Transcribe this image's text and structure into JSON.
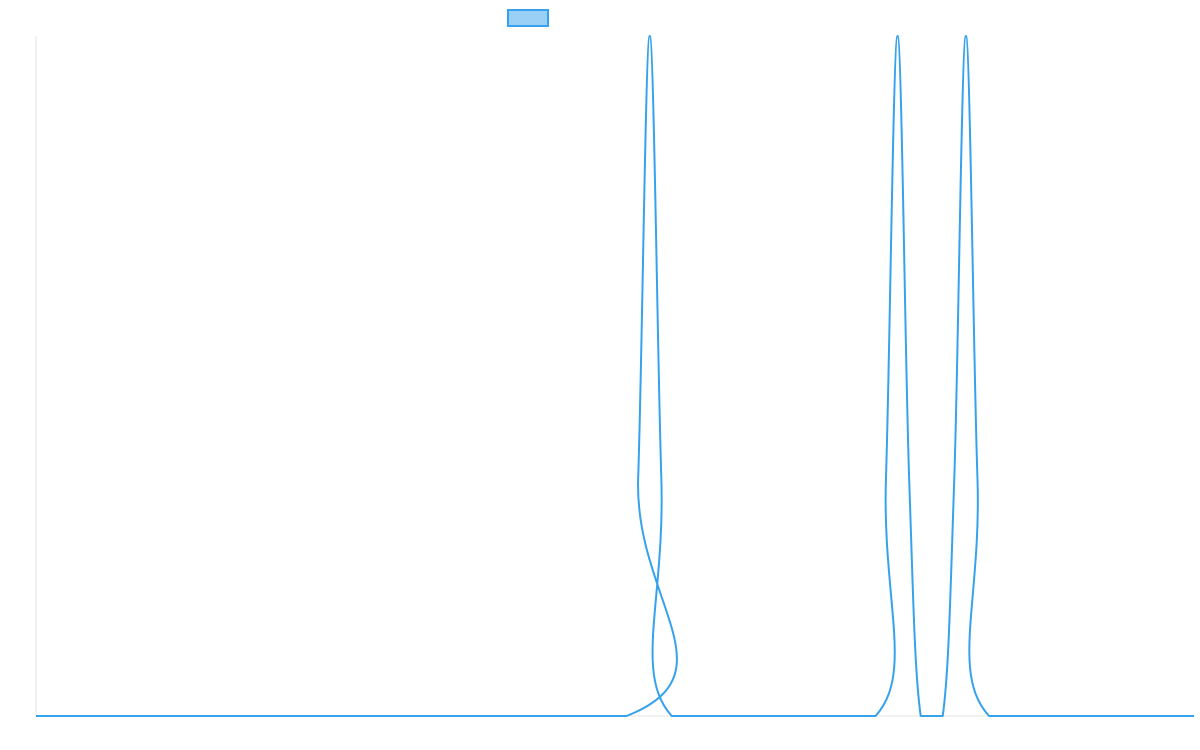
{
  "chart_data": {
    "type": "line",
    "title": "",
    "xlabel": "",
    "ylabel": "",
    "legend": {
      "placement": "top-center",
      "entries": [
        {
          "name": "",
          "color": "#36a2eb",
          "fill": "#9ad0f5"
        }
      ]
    },
    "grid": false,
    "xlim": [
      0,
      1
    ],
    "ylim": [
      0,
      1
    ],
    "series": [
      {
        "name": "",
        "color": "#36a2eb",
        "points": [
          [
            0.0,
            0.0
          ],
          [
            0.51,
            0.0
          ],
          [
            0.52,
            0.35
          ],
          [
            0.53,
            1.0
          ],
          [
            0.54,
            0.35
          ],
          [
            0.549,
            0.0
          ],
          [
            0.725,
            0.0
          ],
          [
            0.734,
            0.35
          ],
          [
            0.744,
            1.0
          ],
          [
            0.754,
            0.35
          ],
          [
            0.764,
            0.0
          ],
          [
            0.783,
            0.0
          ],
          [
            0.793,
            0.35
          ],
          [
            0.803,
            1.0
          ],
          [
            0.813,
            0.35
          ],
          [
            0.823,
            0.0
          ],
          [
            1.0,
            0.0
          ]
        ]
      }
    ],
    "colors": {
      "axis": "#e6e6e6",
      "line": "#36a2eb",
      "legend_fill": "#9ad0f5"
    }
  }
}
